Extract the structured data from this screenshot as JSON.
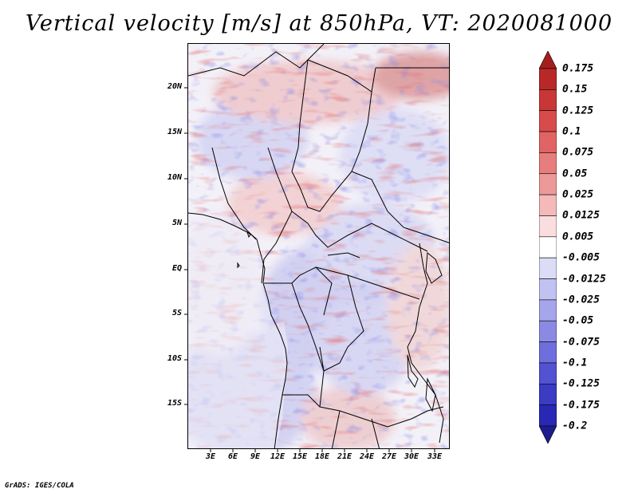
{
  "title": "Vertical velocity [m/s] at 850hPa, VT: 2020081000",
  "credit": "GrADS: IGES/COLA",
  "field": {
    "variable": "Vertical velocity",
    "units": "m/s",
    "level": "850hPa",
    "valid_time": "2020081000"
  },
  "latitude_labels": [
    "20N",
    "15N",
    "10N",
    "5N",
    "EQ",
    "5S",
    "10S",
    "15S"
  ],
  "longitude_labels": [
    "3E",
    "6E",
    "9E",
    "12E",
    "15E",
    "18E",
    "21E",
    "24E",
    "27E",
    "30E",
    "33E"
  ],
  "colorbar": {
    "labels": [
      "0.175",
      "0.15",
      "0.125",
      "0.1",
      "0.075",
      "0.05",
      "0.025",
      "0.0125",
      "0.005",
      "-0.005",
      "-0.0125",
      "-0.025",
      "-0.05",
      "-0.075",
      "-0.1",
      "-0.125",
      "-0.175",
      "-0.2"
    ],
    "colors": [
      "#a51e1e",
      "#b92828",
      "#c83737",
      "#d84b4b",
      "#e06464",
      "#e77d7d",
      "#ee9999",
      "#f4b9b9",
      "#fadede",
      "#ffffff",
      "#dcdcf7",
      "#c1c1f2",
      "#a5a5ec",
      "#8a8ae4",
      "#6e6edc",
      "#5252d2",
      "#3b3bc4",
      "#2828b4",
      "#1c1c8c"
    ]
  },
  "palette": {
    "strong_up": "#c0282a",
    "weak_up": "#f2b8b8",
    "neutral": "#f3f1f8",
    "weak_down": "#c6c6f0",
    "strong_down": "#4747c8",
    "coast_line": "#000000"
  }
}
